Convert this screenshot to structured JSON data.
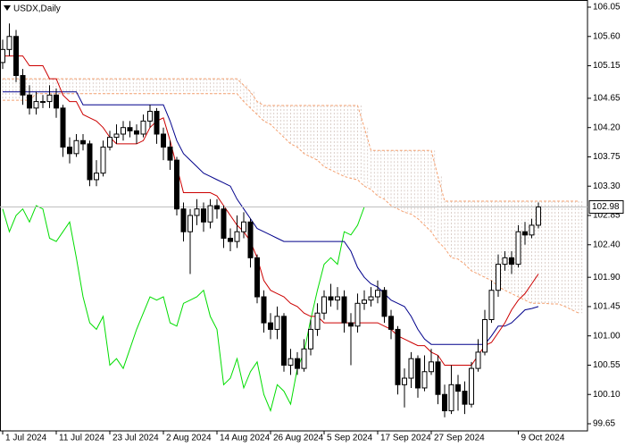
{
  "chart_data": {
    "type": "candlestick",
    "title": "USDX,Daily",
    "categories": [
      "1 Jul 2024",
      null,
      null,
      null,
      null,
      null,
      null,
      null,
      "11 Jul 2024",
      null,
      null,
      null,
      null,
      null,
      null,
      null,
      "23 Jul 2024",
      null,
      null,
      null,
      null,
      null,
      null,
      null,
      "2 Aug 2024",
      null,
      null,
      null,
      null,
      null,
      null,
      null,
      "14 Aug 2024",
      null,
      null,
      null,
      null,
      null,
      null,
      null,
      "26 Aug 2024",
      null,
      null,
      null,
      null,
      null,
      null,
      null,
      "5 Sep 2024",
      null,
      null,
      null,
      null,
      null,
      null,
      null,
      "17 Sep 2024",
      null,
      null,
      null,
      null,
      null,
      null,
      null,
      "27 Sep 2024",
      null,
      null,
      null,
      null,
      null,
      null,
      null,
      null,
      null,
      null,
      null,
      null,
      "9 Oct 2024",
      null,
      null,
      null,
      null,
      null,
      null,
      null,
      null,
      null
    ],
    "open": [
      105.2,
      105.4,
      105.6,
      105.0,
      104.7,
      104.5,
      104.6,
      104.6,
      104.7,
      104.5,
      103.9,
      103.8,
      104.0,
      103.95,
      103.4,
      103.5,
      103.9,
      104.05,
      104.1,
      104.2,
      104.15,
      104.1,
      104.3,
      104.45,
      104.1,
      103.9,
      103.7,
      102.95,
      102.6,
      102.85,
      102.95,
      102.75,
      103.0,
      102.95,
      102.5,
      102.45,
      102.6,
      102.75,
      102.2,
      101.6,
      101.2,
      101.1,
      101.3,
      100.55,
      100.65,
      100.5,
      100.8,
      101.1,
      101.35,
      101.6,
      101.55,
      101.6,
      101.2,
      101.15,
      101.5,
      101.55,
      101.6,
      101.7,
      101.3,
      101.1,
      100.25,
      100.35,
      100.65,
      100.2,
      100.45,
      100.6,
      100.1,
      99.85,
      100.25,
      100.15,
      99.95,
      100.5,
      100.75,
      101.25,
      101.7,
      102.1,
      102.2,
      102.1,
      102.6,
      102.55,
      102.7,
      null,
      null,
      null,
      null,
      null,
      null
    ],
    "high": [
      105.55,
      105.8,
      105.7,
      105.1,
      104.85,
      104.75,
      104.7,
      104.85,
      104.8,
      104.55,
      104.05,
      104.1,
      104.1,
      104.0,
      103.7,
      104.0,
      104.15,
      104.25,
      104.3,
      104.3,
      104.25,
      104.4,
      104.55,
      104.5,
      104.2,
      104.0,
      103.75,
      103.05,
      102.95,
      103.1,
      103.05,
      103.1,
      103.1,
      103.0,
      102.65,
      102.85,
      102.9,
      102.8,
      102.25,
      101.7,
      101.35,
      101.45,
      101.35,
      100.8,
      100.75,
      100.95,
      101.25,
      101.5,
      101.7,
      101.8,
      101.75,
      101.7,
      101.35,
      101.65,
      101.7,
      101.75,
      101.85,
      101.75,
      101.4,
      101.15,
      100.5,
      100.75,
      100.7,
      100.7,
      100.8,
      100.7,
      100.25,
      100.55,
      100.4,
      100.3,
      100.6,
      100.95,
      101.4,
      101.85,
      102.25,
      102.3,
      102.3,
      102.7,
      102.75,
      102.8,
      103.05,
      null,
      null,
      null,
      null,
      null,
      null
    ],
    "low": [
      105.1,
      105.3,
      104.9,
      104.55,
      104.4,
      104.4,
      104.5,
      104.5,
      104.35,
      103.75,
      103.65,
      103.75,
      103.85,
      103.3,
      103.3,
      103.45,
      103.85,
      103.95,
      104.0,
      104.05,
      103.95,
      104.05,
      104.2,
      103.95,
      103.7,
      103.55,
      102.85,
      102.45,
      101.95,
      102.7,
      102.6,
      102.65,
      102.8,
      102.35,
      102.3,
      102.35,
      102.5,
      102.05,
      101.5,
      101.05,
      100.95,
      100.95,
      100.45,
      100.4,
      100.4,
      100.45,
      100.7,
      101.0,
      101.25,
      101.45,
      101.4,
      101.05,
      100.55,
      101.05,
      101.4,
      101.45,
      101.5,
      101.2,
      100.95,
      100.1,
      99.9,
      100.2,
      100.05,
      100.15,
      100.4,
      99.95,
      99.75,
      99.8,
      99.85,
      99.8,
      99.9,
      100.45,
      100.7,
      101.2,
      101.6,
      102.0,
      101.95,
      102.05,
      102.4,
      102.5,
      102.65,
      null,
      null,
      null,
      null,
      null,
      null
    ],
    "close": [
      105.4,
      105.6,
      105.0,
      104.7,
      104.5,
      104.6,
      104.6,
      104.7,
      104.5,
      103.9,
      103.8,
      104.0,
      103.95,
      103.4,
      103.5,
      103.9,
      104.05,
      104.1,
      104.2,
      104.15,
      104.1,
      104.3,
      104.45,
      104.1,
      103.9,
      103.7,
      102.95,
      102.6,
      102.85,
      102.95,
      102.75,
      103.0,
      102.95,
      102.5,
      102.45,
      102.6,
      102.75,
      102.2,
      101.6,
      101.2,
      101.1,
      101.3,
      100.55,
      100.65,
      100.5,
      100.8,
      101.1,
      101.35,
      101.6,
      101.55,
      101.6,
      101.2,
      101.15,
      101.5,
      101.55,
      101.6,
      101.7,
      101.3,
      101.1,
      100.25,
      100.35,
      100.65,
      100.2,
      100.45,
      100.6,
      100.1,
      99.85,
      100.25,
      100.15,
      99.95,
      100.5,
      100.75,
      101.25,
      101.7,
      102.1,
      102.2,
      102.1,
      102.6,
      102.55,
      102.7,
      102.98,
      null,
      null,
      null,
      null,
      null,
      null
    ],
    "color": "#000000",
    "series": [
      {
        "color": "#00dd00",
        "values": [
          102.95,
          102.6,
          102.85,
          102.95,
          102.75,
          103.0,
          102.95,
          102.5,
          102.45,
          102.6,
          102.75,
          102.2,
          101.6,
          101.2,
          101.1,
          101.3,
          100.55,
          100.65,
          100.5,
          100.8,
          101.1,
          101.35,
          101.6,
          101.55,
          101.6,
          101.2,
          101.15,
          101.5,
          101.55,
          101.6,
          101.7,
          101.3,
          101.1,
          100.25,
          100.35,
          100.65,
          100.2,
          100.45,
          100.6,
          100.1,
          99.85,
          100.25,
          100.15,
          99.95,
          100.5,
          100.75,
          101.25,
          101.7,
          102.1,
          102.2,
          102.1,
          102.6,
          102.55,
          102.7,
          102.98,
          null,
          null,
          null,
          null,
          null,
          null,
          null,
          null,
          null,
          null,
          null,
          null,
          null,
          null,
          null,
          null,
          null,
          null,
          null,
          null,
          null,
          null,
          null,
          null,
          null,
          null,
          null,
          null,
          null,
          null,
          null,
          null
        ]
      },
      {
        "color": "#00008b",
        "values": [
          104.75,
          104.75,
          104.75,
          104.75,
          104.75,
          104.75,
          104.75,
          104.75,
          104.75,
          104.75,
          104.75,
          104.75,
          104.55,
          104.55,
          104.55,
          104.55,
          104.55,
          104.55,
          104.55,
          104.55,
          104.55,
          104.55,
          104.55,
          104.55,
          104.55,
          104.3,
          104.0,
          103.8,
          103.7,
          103.6,
          103.5,
          103.45,
          103.4,
          103.35,
          103.3,
          103.1,
          102.95,
          102.8,
          102.65,
          102.6,
          102.55,
          102.5,
          102.45,
          102.45,
          102.45,
          102.45,
          102.45,
          102.45,
          102.45,
          102.45,
          102.45,
          102.45,
          102.3,
          102.05,
          101.9,
          101.8,
          101.75,
          101.65,
          101.55,
          101.5,
          101.45,
          101.3,
          101.1,
          100.95,
          100.87,
          100.87,
          100.87,
          100.87,
          100.87,
          100.87,
          100.87,
          100.87,
          100.87,
          101.0,
          101.15,
          101.15,
          101.2,
          101.3,
          101.4,
          101.42,
          101.45,
          null,
          null,
          null,
          null,
          null,
          null
        ]
      },
      {
        "color": "#cc0000",
        "values": [
          105.3,
          105.3,
          105.3,
          105.3,
          105.15,
          105.15,
          105.15,
          104.95,
          104.95,
          104.7,
          104.6,
          104.6,
          104.4,
          104.35,
          104.3,
          104.2,
          104.05,
          103.95,
          103.95,
          103.95,
          103.95,
          104.0,
          104.2,
          104.3,
          104.35,
          104.0,
          103.6,
          103.2,
          103.2,
          103.2,
          103.2,
          103.2,
          103.15,
          103.0,
          102.85,
          102.7,
          102.6,
          102.45,
          102.2,
          101.85,
          101.7,
          101.65,
          101.6,
          101.5,
          101.45,
          101.35,
          101.3,
          101.3,
          101.2,
          101.2,
          101.2,
          101.2,
          101.2,
          101.2,
          101.2,
          101.2,
          101.2,
          101.15,
          101.1,
          101.0,
          100.95,
          100.9,
          100.85,
          100.85,
          100.75,
          100.7,
          100.55,
          100.55,
          100.55,
          100.55,
          100.55,
          100.7,
          100.85,
          100.9,
          101.05,
          101.2,
          101.4,
          101.55,
          101.65,
          101.8,
          101.95,
          null,
          null,
          null,
          null,
          null,
          null
        ]
      }
    ],
    "cloud": [
      {
        "color": "#f4a070",
        "values": [
          104.95,
          104.95,
          104.95,
          104.95,
          104.95,
          104.95,
          104.95,
          104.95,
          104.95,
          104.95,
          104.95,
          104.95,
          104.95,
          104.95,
          104.95,
          104.95,
          104.95,
          104.95,
          104.95,
          104.95,
          104.95,
          104.95,
          104.95,
          104.95,
          104.95,
          104.95,
          104.95,
          104.95,
          104.95,
          104.95,
          104.95,
          104.95,
          104.95,
          104.95,
          104.95,
          104.95,
          104.85,
          104.75,
          104.6,
          104.54,
          104.54,
          104.54,
          104.54,
          104.54,
          104.54,
          104.54,
          104.54,
          104.54,
          104.54,
          104.54,
          104.54,
          104.54,
          104.54,
          104.54,
          104.2,
          103.85,
          103.85,
          103.85,
          103.85,
          103.85,
          103.85,
          103.85,
          103.85,
          103.85,
          103.85,
          103.45,
          103.07,
          103.07,
          103.07,
          103.07,
          103.07,
          103.07,
          103.07,
          103.07,
          103.07,
          103.07,
          103.07,
          103.07,
          103.07,
          103.07,
          103.07,
          103.07,
          103.07,
          103.07,
          103.07,
          103.07,
          103.07
        ]
      },
      {
        "color": "#f4a070",
        "values": [
          104.62,
          104.62,
          104.62,
          104.62,
          104.62,
          104.72,
          104.72,
          104.72,
          104.72,
          104.72,
          104.72,
          104.72,
          104.72,
          104.72,
          104.72,
          104.72,
          104.72,
          104.72,
          104.72,
          104.72,
          104.72,
          104.72,
          104.72,
          104.72,
          104.72,
          104.72,
          104.72,
          104.72,
          104.72,
          104.72,
          104.72,
          104.72,
          104.72,
          104.72,
          104.72,
          104.72,
          104.6,
          104.5,
          104.4,
          104.3,
          104.25,
          104.15,
          104.05,
          103.95,
          103.9,
          103.8,
          103.75,
          103.7,
          103.6,
          103.55,
          103.5,
          103.45,
          103.42,
          103.4,
          103.3,
          103.25,
          103.15,
          103.1,
          103.0,
          102.95,
          102.9,
          102.87,
          102.8,
          102.7,
          102.6,
          102.45,
          102.35,
          102.2,
          102.18,
          102.1,
          102.0,
          101.95,
          101.9,
          101.85,
          101.76,
          101.7,
          101.65,
          101.6,
          101.55,
          101.5,
          101.5,
          101.5,
          101.49,
          101.49,
          101.45,
          101.4,
          101.35
        ]
      }
    ],
    "last_price": 102.98,
    "ylim": [
      99.54,
      106.16
    ],
    "yticks": [
      {
        "value": 99.65,
        "label": "99.65"
      },
      {
        "value": 100.1,
        "label": "100.10"
      },
      100.55,
      {
        "value": 101,
        "label": "101.00"
      },
      101.45,
      {
        "value": 101.9,
        "label": "101.90"
      },
      {
        "value": 102.4,
        "label": "102.40"
      },
      102.85,
      {
        "value": 103.3,
        "label": "103.30"
      },
      103.75,
      {
        "value": 104.2,
        "label": "104.20"
      },
      104.65,
      {
        "value": 105.15,
        "label": "105.15"
      },
      {
        "value": 105.6,
        "label": "105.60"
      },
      106.05
    ]
  }
}
